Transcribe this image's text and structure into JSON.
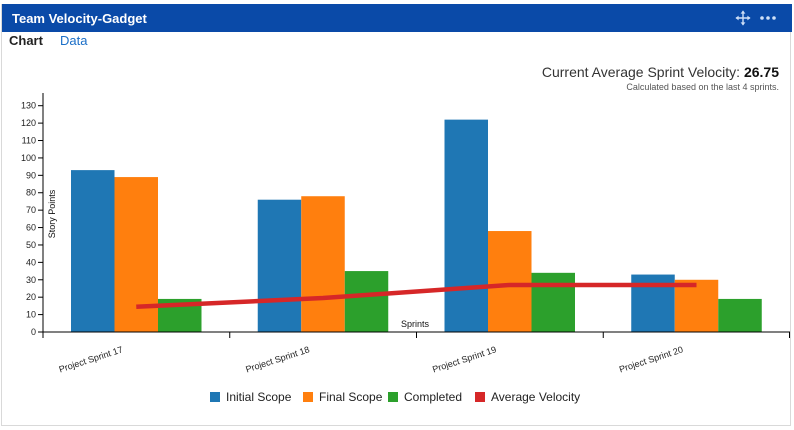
{
  "gadget": {
    "title": "Team Velocity-Gadget",
    "header_color": "#0a4aa8",
    "icons": [
      "move-icon",
      "more-icon"
    ]
  },
  "tabs": [
    {
      "label": "Chart",
      "active": true
    },
    {
      "label": "Data",
      "active": false
    }
  ],
  "summary": {
    "label": "Current Average Sprint Velocity:",
    "value": "26.75",
    "note": "Calculated based on the last 4 sprints."
  },
  "chart_data": {
    "type": "bar",
    "xlabel": "Sprints",
    "ylabel": "Story Points",
    "ylim": [
      0,
      135
    ],
    "yticks": [
      0,
      10,
      20,
      30,
      40,
      50,
      60,
      70,
      80,
      90,
      100,
      110,
      120,
      130
    ],
    "categories": [
      "Project Sprint 17",
      "Project Sprint 18",
      "Project Sprint 19",
      "Project Sprint 20"
    ],
    "series": [
      {
        "name": "Initial Scope",
        "color": "#1f77b4",
        "values": [
          93,
          76,
          122,
          33
        ]
      },
      {
        "name": "Final Scope",
        "color": "#ff7f0e",
        "values": [
          89,
          78,
          58,
          30
        ]
      },
      {
        "name": "Completed",
        "color": "#2ca02c",
        "values": [
          19,
          35,
          34,
          19
        ]
      }
    ],
    "line": {
      "name": "Average Velocity",
      "color": "#d62728",
      "values": [
        14.5,
        19.5,
        27,
        27
      ]
    },
    "legend_position": "bottom",
    "grid": false
  }
}
